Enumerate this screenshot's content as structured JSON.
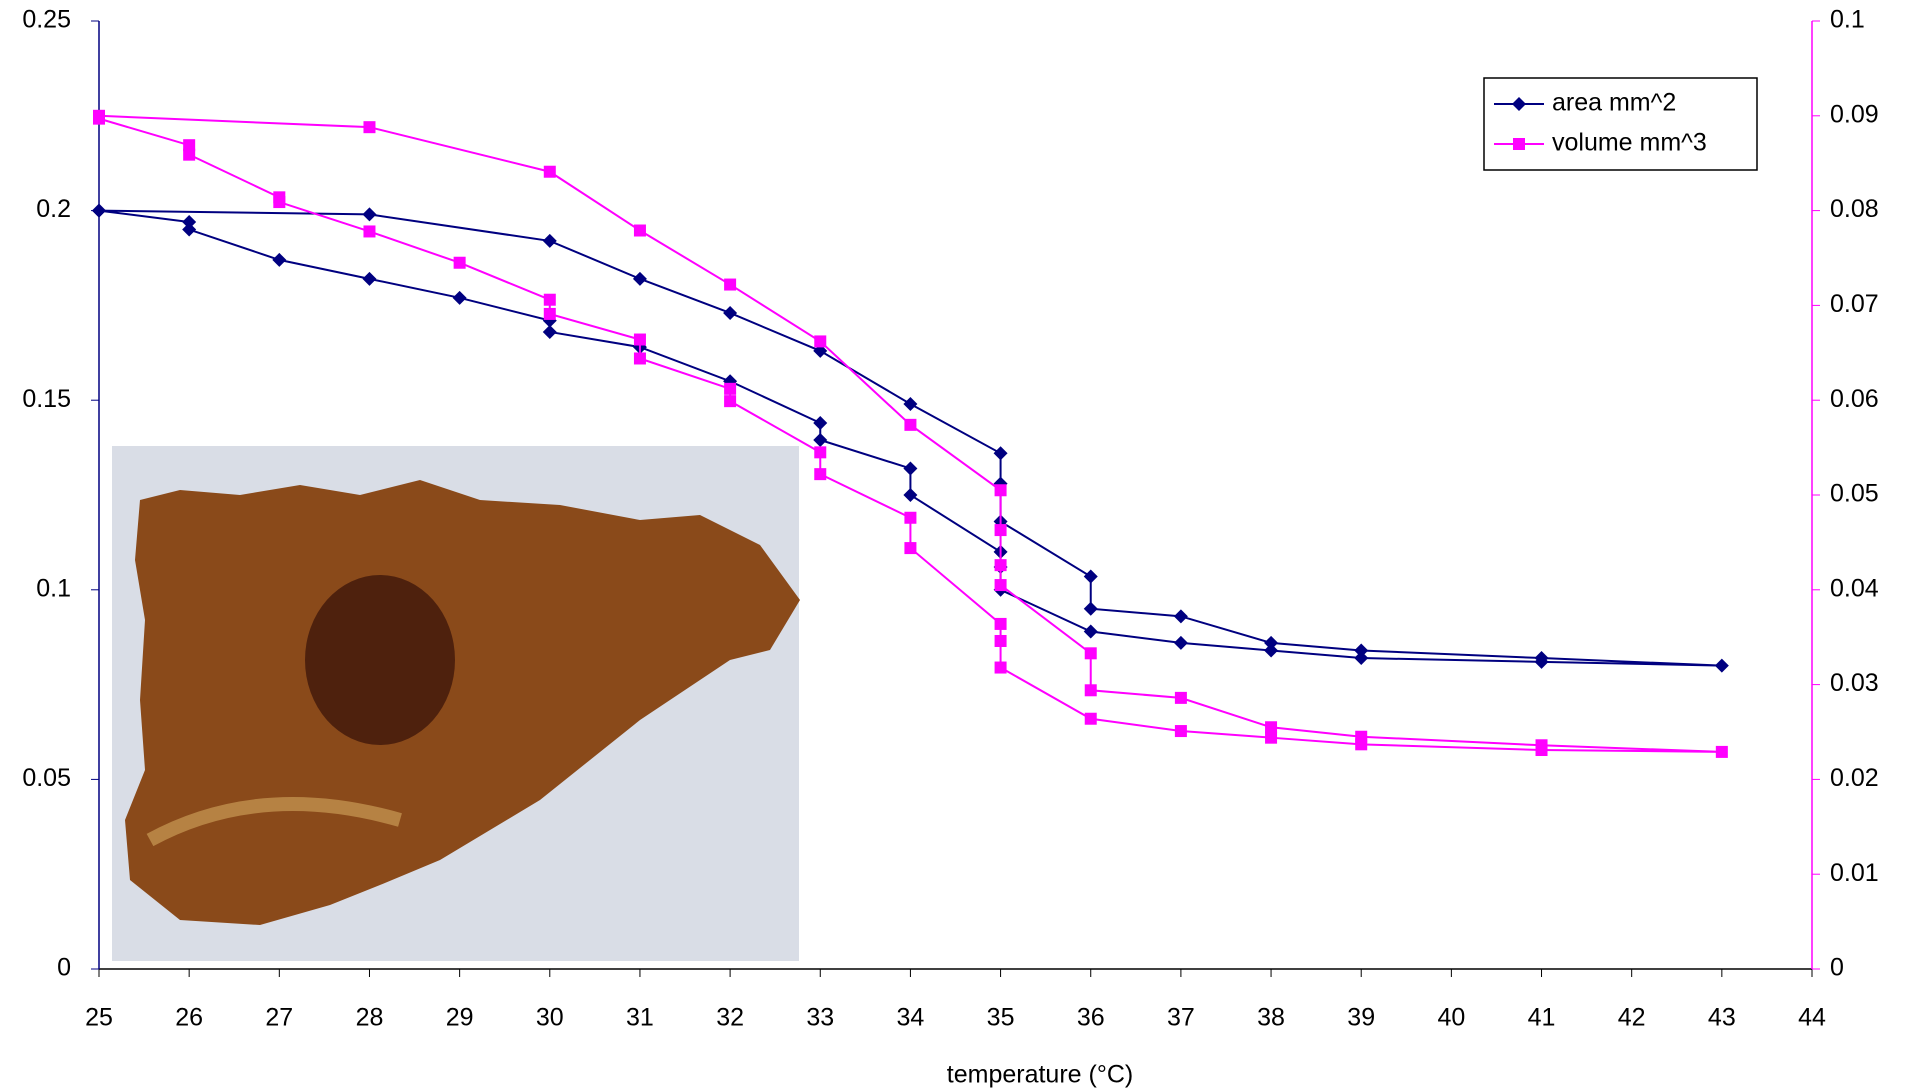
{
  "chart_data": {
    "type": "line",
    "x_label": "temperature (°C)",
    "xlim": [
      25,
      44
    ],
    "xticks": [
      25,
      26,
      27,
      28,
      29,
      30,
      31,
      32,
      33,
      34,
      35,
      36,
      37,
      38,
      39,
      40,
      41,
      42,
      43,
      44
    ],
    "ylim": [
      0,
      0.25
    ],
    "yticks": [
      0,
      0.05,
      0.1,
      0.15,
      0.2,
      0.25
    ],
    "y2lim": [
      0,
      0.1
    ],
    "y2ticks": [
      0,
      0.01,
      0.02,
      0.03,
      0.04,
      0.05,
      0.06,
      0.07,
      0.08,
      0.09,
      0.1
    ],
    "legend": "top-right",
    "series": [
      {
        "name": "area mm^2",
        "color": "#000080",
        "marker": "diamond",
        "x": [
          25,
          26,
          26,
          27,
          28,
          29,
          30,
          30,
          31,
          32,
          33,
          33,
          34,
          34,
          35,
          35,
          35,
          36,
          37,
          38,
          39,
          41,
          43,
          41,
          39,
          38,
          37,
          36,
          36,
          35,
          35,
          35,
          34,
          33,
          32,
          31,
          30,
          28,
          25
        ],
        "values": [
          0.2,
          0.197,
          0.195,
          0.187,
          0.182,
          0.177,
          0.171,
          0.168,
          0.164,
          0.155,
          0.144,
          0.1395,
          0.132,
          0.125,
          0.11,
          0.106,
          0.1,
          0.089,
          0.086,
          0.084,
          0.082,
          0.081,
          0.08,
          0.082,
          0.084,
          0.086,
          0.093,
          0.095,
          0.1035,
          0.118,
          0.128,
          0.136,
          0.149,
          0.163,
          0.173,
          0.182,
          0.192,
          0.199,
          0.2
        ]
      },
      {
        "name": "volume mm^3",
        "color": "#ff00ff",
        "marker": "square",
        "axis": "y2",
        "x": [
          25,
          26,
          26,
          27,
          27,
          28,
          29,
          30,
          30,
          31,
          31,
          32,
          32,
          33,
          33,
          34,
          34,
          35,
          35,
          35,
          36,
          37,
          38,
          39,
          41,
          43,
          41,
          39,
          38,
          37,
          36,
          36,
          35,
          35,
          35,
          35,
          34,
          33,
          32,
          31,
          30,
          28,
          25
        ],
        "values": [
          0.0897,
          0.0869,
          0.0859,
          0.0814,
          0.0809,
          0.0778,
          0.0745,
          0.0706,
          0.0691,
          0.0664,
          0.0644,
          0.0612,
          0.0599,
          0.0545,
          0.0522,
          0.0476,
          0.0444,
          0.0364,
          0.0346,
          0.0318,
          0.0264,
          0.0251,
          0.0244,
          0.0237,
          0.0231,
          0.0229,
          0.0236,
          0.0245,
          0.0255,
          0.0286,
          0.0294,
          0.0333,
          0.0405,
          0.0426,
          0.0463,
          0.0505,
          0.0574,
          0.0662,
          0.0722,
          0.0779,
          0.0841,
          0.0888,
          0.09
        ]
      }
    ]
  }
}
